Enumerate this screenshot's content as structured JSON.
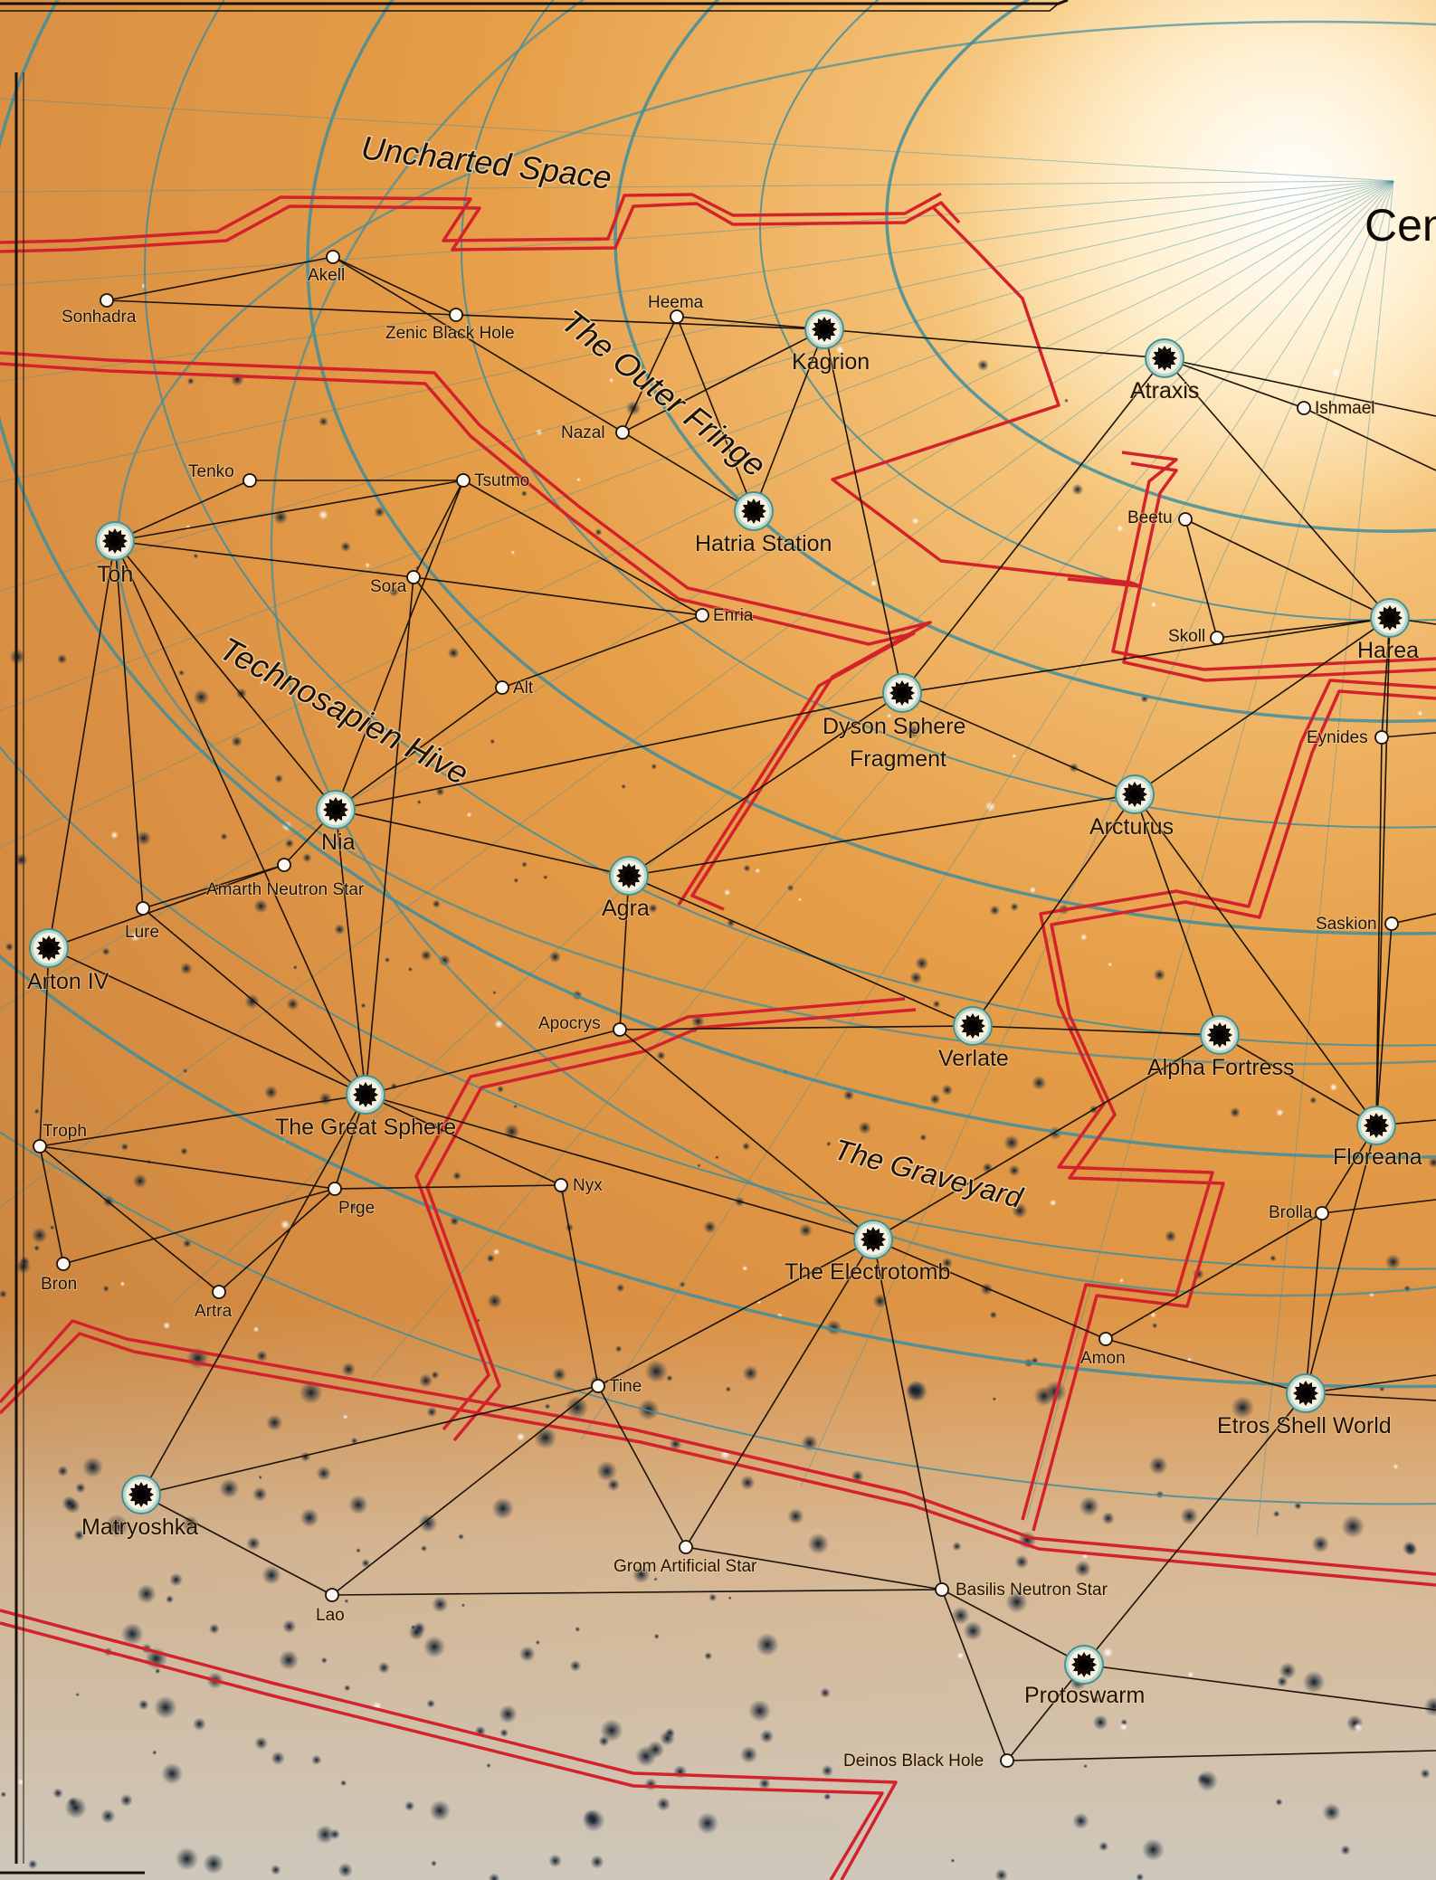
{
  "map_title_partial": "Cen",
  "regions": [
    {
      "id": "uncharted",
      "label": "Uncharted Space"
    },
    {
      "id": "fringe",
      "label": "The Outer Fringe"
    },
    {
      "id": "hive",
      "label": "Technosapien Hive"
    },
    {
      "id": "graveyard",
      "label": "The Graveyard"
    }
  ],
  "systems": [
    {
      "id": "sonhadra",
      "label": "Sonhadra",
      "kind": "minor"
    },
    {
      "id": "akell",
      "label": "Akell",
      "kind": "minor"
    },
    {
      "id": "zenic",
      "label": "Zenic Black Hole",
      "kind": "minor"
    },
    {
      "id": "heema",
      "label": "Heema",
      "kind": "minor"
    },
    {
      "id": "kagrion",
      "label": "Kagrion",
      "kind": "major"
    },
    {
      "id": "atraxis",
      "label": "Atraxis",
      "kind": "major"
    },
    {
      "id": "ishmael",
      "label": "Ishmael",
      "kind": "minor"
    },
    {
      "id": "nazal",
      "label": "Nazal",
      "kind": "minor"
    },
    {
      "id": "hatria",
      "label": "Hatria Station",
      "kind": "major"
    },
    {
      "id": "tenko",
      "label": "Tenko",
      "kind": "minor"
    },
    {
      "id": "tsutmo",
      "label": "Tsutmo",
      "kind": "minor"
    },
    {
      "id": "toh",
      "label": "Toh",
      "kind": "major"
    },
    {
      "id": "sora",
      "label": "Sora",
      "kind": "minor"
    },
    {
      "id": "enria",
      "label": "Enria",
      "kind": "minor"
    },
    {
      "id": "alt",
      "label": "Alt",
      "kind": "minor"
    },
    {
      "id": "beetu",
      "label": "Beetu",
      "kind": "minor"
    },
    {
      "id": "skoll",
      "label": "Skoll",
      "kind": "minor"
    },
    {
      "id": "harea",
      "label": "Harea",
      "kind": "major"
    },
    {
      "id": "dyson",
      "label": "Dyson Sphere",
      "label2": "Fragment",
      "kind": "major"
    },
    {
      "id": "eynides",
      "label": "Eynides",
      "kind": "minor"
    },
    {
      "id": "nia",
      "label": "Nia",
      "kind": "major"
    },
    {
      "id": "arcturus",
      "label": "Arcturus",
      "kind": "major"
    },
    {
      "id": "amarth",
      "label": "Amarth Neutron Star",
      "kind": "minor"
    },
    {
      "id": "agra",
      "label": "Agra",
      "kind": "major"
    },
    {
      "id": "lure",
      "label": "Lure",
      "kind": "minor"
    },
    {
      "id": "arton",
      "label": "Arton IV",
      "kind": "major"
    },
    {
      "id": "saskion",
      "label": "Saskion",
      "kind": "minor"
    },
    {
      "id": "apocrys",
      "label": "Apocrys",
      "kind": "minor"
    },
    {
      "id": "verlate",
      "label": "Verlate",
      "kind": "major"
    },
    {
      "id": "alphaf",
      "label": "Alpha Fortress",
      "kind": "major"
    },
    {
      "id": "greatsphere",
      "label": "The Great Sphere",
      "kind": "major"
    },
    {
      "id": "floreana",
      "label": "Floreana",
      "kind": "major"
    },
    {
      "id": "troph",
      "label": "Troph",
      "kind": "minor"
    },
    {
      "id": "nyx",
      "label": "Nyx",
      "kind": "minor"
    },
    {
      "id": "prge",
      "label": "Prge",
      "kind": "minor"
    },
    {
      "id": "brolla",
      "label": "Brolla",
      "kind": "minor"
    },
    {
      "id": "electrotomb",
      "label": "The Electrotomb",
      "kind": "major"
    },
    {
      "id": "bron",
      "label": "Bron",
      "kind": "minor"
    },
    {
      "id": "artra",
      "label": "Artra",
      "kind": "minor"
    },
    {
      "id": "amon",
      "label": "Amon",
      "kind": "minor"
    },
    {
      "id": "tine",
      "label": "Tine",
      "kind": "minor"
    },
    {
      "id": "etros",
      "label": "Etros Shell World",
      "kind": "major"
    },
    {
      "id": "matryoshka",
      "label": "Matryoshka",
      "kind": "major"
    },
    {
      "id": "grom",
      "label": "Grom Artificial Star",
      "kind": "minor"
    },
    {
      "id": "basilis",
      "label": "Basilis Neutron Star",
      "kind": "minor"
    },
    {
      "id": "lao",
      "label": "Lao",
      "kind": "minor"
    },
    {
      "id": "protoswarm",
      "label": "Protoswarm",
      "kind": "major"
    },
    {
      "id": "deinos",
      "label": "Deinos Black Hole",
      "kind": "minor"
    }
  ],
  "routes": [
    [
      "sonhadra",
      "akell"
    ],
    [
      "sonhadra",
      "zenic"
    ],
    [
      "akell",
      "zenic"
    ],
    [
      "akell",
      "hatria"
    ],
    [
      "zenic",
      "kagrion"
    ],
    [
      "heema",
      "kagrion"
    ],
    [
      "heema",
      "nazal"
    ],
    [
      "heema",
      "hatria"
    ],
    [
      "nazal",
      "kagrion"
    ],
    [
      "kagrion",
      "hatria"
    ],
    [
      "kagrion",
      "atraxis"
    ],
    [
      "kagrion",
      "dyson"
    ],
    [
      "atraxis",
      "ishmael"
    ],
    [
      "atraxis",
      "dyson"
    ],
    [
      "atraxis",
      "harea"
    ],
    [
      "atraxis",
      "edge-e1"
    ],
    [
      "ishmael",
      "edge-e2"
    ],
    [
      "tenko",
      "tsutmo"
    ],
    [
      "tenko",
      "toh"
    ],
    [
      "toh",
      "tsutmo"
    ],
    [
      "toh",
      "sora"
    ],
    [
      "toh",
      "lure"
    ],
    [
      "toh",
      "arton"
    ],
    [
      "toh",
      "nia"
    ],
    [
      "toh",
      "greatsphere"
    ],
    [
      "tsutmo",
      "sora"
    ],
    [
      "tsutmo",
      "enria"
    ],
    [
      "tsutmo",
      "nia"
    ],
    [
      "sora",
      "enria"
    ],
    [
      "sora",
      "alt"
    ],
    [
      "sora",
      "greatsphere"
    ],
    [
      "alt",
      "enria"
    ],
    [
      "nia",
      "amarth"
    ],
    [
      "nia",
      "agra"
    ],
    [
      "nia",
      "dyson"
    ],
    [
      "nia",
      "alt"
    ],
    [
      "nia",
      "greatsphere"
    ],
    [
      "amarth",
      "lure"
    ],
    [
      "amarth",
      "arton"
    ],
    [
      "lure",
      "greatsphere"
    ],
    [
      "arton",
      "troph"
    ],
    [
      "arton",
      "greatsphere"
    ],
    [
      "dyson",
      "arcturus"
    ],
    [
      "dyson",
      "agra"
    ],
    [
      "dyson",
      "harea"
    ],
    [
      "beetu",
      "skoll"
    ],
    [
      "beetu",
      "harea"
    ],
    [
      "skoll",
      "harea"
    ],
    [
      "harea",
      "arcturus"
    ],
    [
      "harea",
      "eynides"
    ],
    [
      "harea",
      "floreana"
    ],
    [
      "harea",
      "edge-e3"
    ],
    [
      "eynides",
      "floreana"
    ],
    [
      "eynides",
      "edge-e4"
    ],
    [
      "arcturus",
      "agra"
    ],
    [
      "arcturus",
      "verlate"
    ],
    [
      "arcturus",
      "alphaf"
    ],
    [
      "arcturus",
      "floreana"
    ],
    [
      "agra",
      "apocrys"
    ],
    [
      "agra",
      "verlate"
    ],
    [
      "apocrys",
      "verlate"
    ],
    [
      "apocrys",
      "greatsphere"
    ],
    [
      "apocrys",
      "electrotomb"
    ],
    [
      "verlate",
      "alphaf"
    ],
    [
      "alphaf",
      "floreana"
    ],
    [
      "alphaf",
      "electrotomb"
    ],
    [
      "floreana",
      "brolla"
    ],
    [
      "floreana",
      "etros"
    ],
    [
      "floreana",
      "saskion"
    ],
    [
      "saskion",
      "edge-e5"
    ],
    [
      "floreana",
      "edge-e6"
    ],
    [
      "greatsphere",
      "troph"
    ],
    [
      "greatsphere",
      "nyx"
    ],
    [
      "greatsphere",
      "prge"
    ],
    [
      "greatsphere",
      "electrotomb"
    ],
    [
      "greatsphere",
      "matryoshka"
    ],
    [
      "troph",
      "prge"
    ],
    [
      "troph",
      "bron"
    ],
    [
      "troph",
      "artra"
    ],
    [
      "prge",
      "bron"
    ],
    [
      "prge",
      "nyx"
    ],
    [
      "prge",
      "artra"
    ],
    [
      "nyx",
      "tine"
    ],
    [
      "electrotomb",
      "amon"
    ],
    [
      "electrotomb",
      "tine"
    ],
    [
      "electrotomb",
      "grom"
    ],
    [
      "electrotomb",
      "basilis"
    ],
    [
      "amon",
      "brolla"
    ],
    [
      "amon",
      "etros"
    ],
    [
      "brolla",
      "etros"
    ],
    [
      "brolla",
      "edge-e7"
    ],
    [
      "etros",
      "protoswarm"
    ],
    [
      "etros",
      "edge-e8"
    ],
    [
      "etros",
      "edge-e9"
    ],
    [
      "tine",
      "matryoshka"
    ],
    [
      "tine",
      "grom"
    ],
    [
      "tine",
      "lao"
    ],
    [
      "matryoshka",
      "lao"
    ],
    [
      "lao",
      "basilis"
    ],
    [
      "grom",
      "basilis"
    ],
    [
      "basilis",
      "protoswarm"
    ],
    [
      "basilis",
      "deinos"
    ],
    [
      "protoswarm",
      "deinos"
    ],
    [
      "deinos",
      "edge-e10"
    ],
    [
      "protoswarm",
      "edge-e11"
    ]
  ],
  "colors": {
    "background_warm": "#e8a24c",
    "background_light": "#fff6de",
    "border_red": "#d3222c",
    "orbit_teal": "#3f8e9e",
    "route_line": "#1b1208",
    "star_dark": "#0d1622"
  },
  "icons": {
    "major_system": "sunburst-star-icon",
    "minor_system": "circle-node-icon"
  }
}
